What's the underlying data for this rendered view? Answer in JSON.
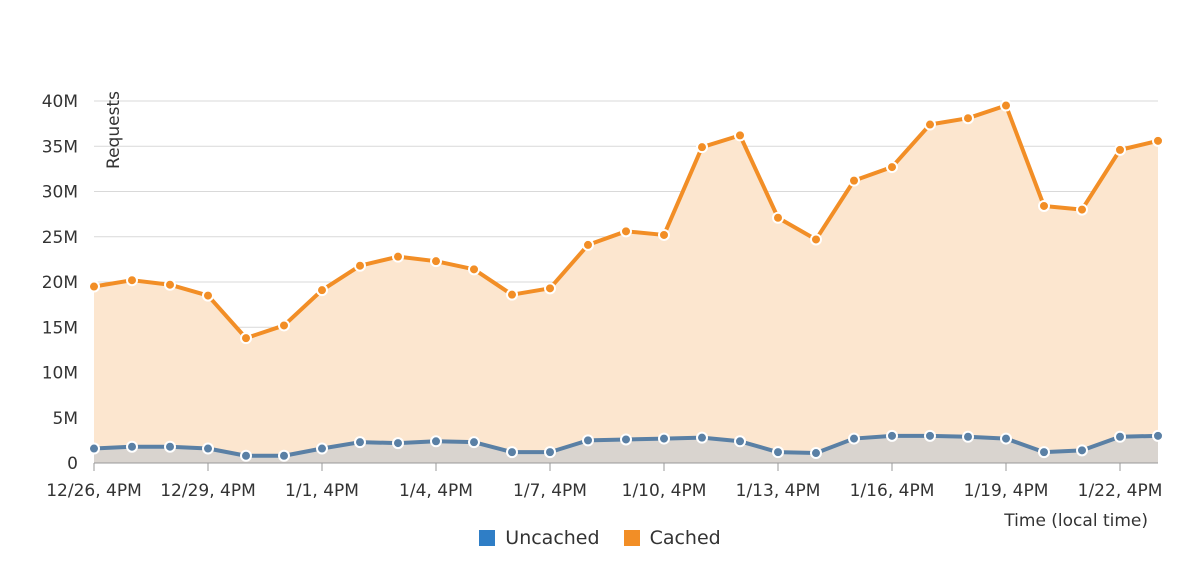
{
  "chart_data": {
    "type": "area",
    "xlabel": "Time (local time)",
    "ylabel": "Requests",
    "ylim": [
      0,
      40000000
    ],
    "y_ticks": [
      0,
      5000000,
      10000000,
      15000000,
      20000000,
      25000000,
      30000000,
      35000000,
      40000000
    ],
    "y_tick_labels": [
      "0",
      "5M",
      "10M",
      "15M",
      "20M",
      "25M",
      "30M",
      "35M",
      "40M"
    ],
    "x_tick_labels": [
      "12/26, 4PM",
      "12/29, 4PM",
      "1/1, 4PM",
      "1/4, 4PM",
      "1/7, 4PM",
      "1/10, 4PM",
      "1/13, 4PM",
      "1/16, 4PM",
      "1/19, 4PM",
      "1/22, 4PM"
    ],
    "x_tick_every": 3,
    "x": [
      "12/26",
      "12/27",
      "12/28",
      "12/29",
      "12/30",
      "12/31",
      "1/1",
      "1/2",
      "1/3",
      "1/4",
      "1/5",
      "1/6",
      "1/7",
      "1/8",
      "1/9",
      "1/10",
      "1/11",
      "1/12",
      "1/13",
      "1/14",
      "1/15",
      "1/16",
      "1/17",
      "1/18",
      "1/19",
      "1/20",
      "1/21",
      "1/22",
      "1/23"
    ],
    "grid": true,
    "legend_position": "bottom-center",
    "stacked": true,
    "series": [
      {
        "name": "Uncached",
        "color": "#2f7ec6",
        "line_color": "#5a80a5",
        "fill_color": "#d9d4cf",
        "values": [
          1600000,
          1800000,
          1800000,
          1600000,
          800000,
          800000,
          1600000,
          2300000,
          2200000,
          2400000,
          2300000,
          1200000,
          1200000,
          2500000,
          2600000,
          2700000,
          2800000,
          2400000,
          1200000,
          1100000,
          2700000,
          3000000,
          3000000,
          2900000,
          2700000,
          1200000,
          1400000,
          2900000,
          3000000
        ]
      },
      {
        "name": "Cached",
        "color": "#f28e26",
        "line_color": "#f28e26",
        "fill_color": "#fce6cf",
        "values": [
          17900000,
          18400000,
          17900000,
          16900000,
          13000000,
          14400000,
          17500000,
          19500000,
          20600000,
          19900000,
          19100000,
          17400000,
          18100000,
          21600000,
          23000000,
          22500000,
          32100000,
          33800000,
          25900000,
          23600000,
          28500000,
          29700000,
          34400000,
          35200000,
          36800000,
          27200000,
          26600000,
          31700000,
          32600000
        ]
      }
    ]
  }
}
